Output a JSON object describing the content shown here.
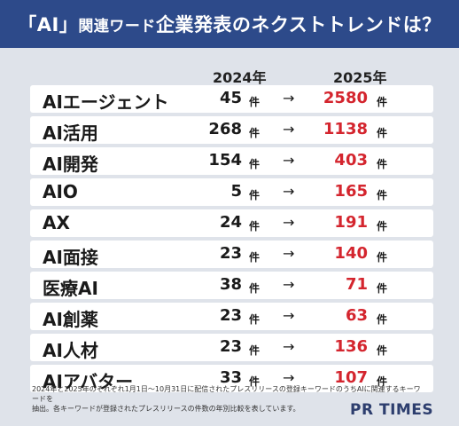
{
  "title": {
    "part1": "「AI」",
    "part2": "関連ワード",
    "part3": "企業発表のネクストトレンドは？"
  },
  "columns": {
    "year_2024": "2024年",
    "year_2025": "2025年"
  },
  "unit": "件",
  "arrow": "→",
  "rows": [
    {
      "term": "AIエージェント",
      "v2024": "45",
      "v2025": "2580"
    },
    {
      "term": "AI活用",
      "v2024": "268",
      "v2025": "1138"
    },
    {
      "term": "AI開発",
      "v2024": "154",
      "v2025": "403"
    },
    {
      "term": "AIO",
      "v2024": "5",
      "v2025": "165"
    },
    {
      "term": "AX",
      "v2024": "24",
      "v2025": "191"
    },
    {
      "term": "AI面接",
      "v2024": "23",
      "v2025": "140"
    },
    {
      "term": "医療AI",
      "v2024": "38",
      "v2025": "71"
    },
    {
      "term": "AI創薬",
      "v2024": "23",
      "v2025": "63"
    },
    {
      "term": "AI人材",
      "v2024": "23",
      "v2025": "136"
    },
    {
      "term": "AIアバター",
      "v2024": "33",
      "v2025": "107"
    }
  ],
  "footnote": {
    "line1": "2024年と2025年のそれぞれ1月1日〜10月31日に配信されたプレスリリースの登録キーワードのうちAIに関連するキーワードを",
    "line2": "抽出。各キーワードが登録されたプレスリリースの件数の年別比較を表しています。"
  },
  "logo": "PR TIMES",
  "colors": {
    "banner": "#2d4a8a",
    "highlight": "#d4252e",
    "background": "#dfe3ea"
  }
}
